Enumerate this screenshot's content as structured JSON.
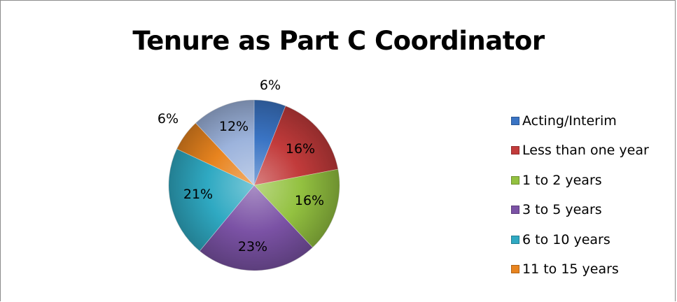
{
  "chart_data": {
    "type": "pie",
    "title": "Tenure as Part C Coordinator",
    "legend_position": "right",
    "slices": [
      {
        "label": "Acting/Interim",
        "value": 6,
        "value_label": "6%",
        "color": "#3a74c4"
      },
      {
        "label": "Less than one year",
        "value": 16,
        "value_label": "16%",
        "color": "#c23b3b"
      },
      {
        "label": "1 to 2 years",
        "value": 16,
        "value_label": "16%",
        "color": "#93c140"
      },
      {
        "label": "3 to 5 years",
        "value": 23,
        "value_label": "23%",
        "color": "#7b52a5"
      },
      {
        "label": "6 to 10 years",
        "value": 21,
        "value_label": "21%",
        "color": "#2fa9c2"
      },
      {
        "label": "11 to 15 years",
        "value": 6,
        "value_label": "6%",
        "color": "#e8841f"
      },
      {
        "label": "",
        "value": 12,
        "value_label": "12%",
        "color": "#9cb3dc"
      }
    ]
  }
}
